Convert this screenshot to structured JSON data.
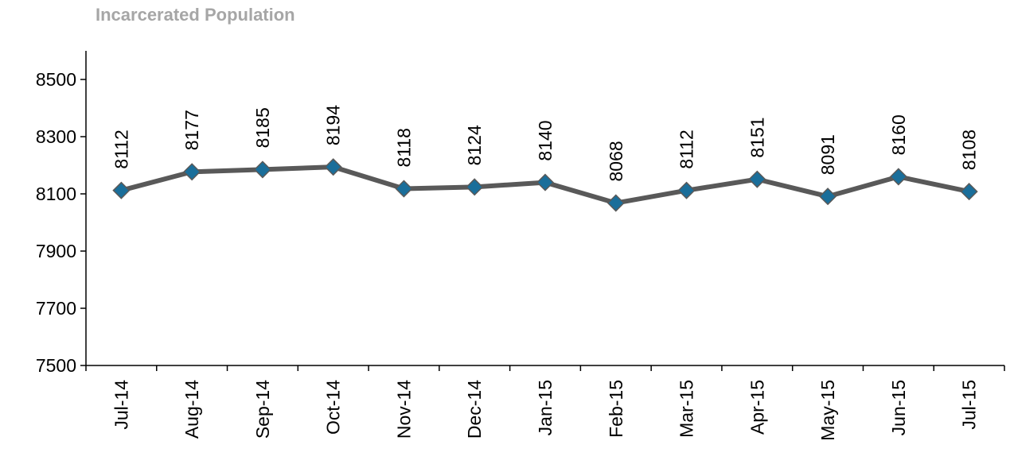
{
  "chart_data": {
    "type": "line",
    "title": "Incarcerated Population",
    "categories": [
      "Jul-14",
      "Aug-14",
      "Sep-14",
      "Oct-14",
      "Nov-14",
      "Dec-14",
      "Jan-15",
      "Feb-15",
      "Mar-15",
      "Apr-15",
      "May-15",
      "Jun-15",
      "Jul-15"
    ],
    "values": [
      8112,
      8177,
      8185,
      8194,
      8118,
      8124,
      8140,
      8068,
      8112,
      8151,
      8091,
      8160,
      8108
    ],
    "color": "#595959",
    "marker_color": "#1a6e9a",
    "ylim": [
      7500,
      8600
    ],
    "yticks": [
      7500,
      7700,
      7900,
      8100,
      8300,
      8500
    ],
    "grid": false
  }
}
